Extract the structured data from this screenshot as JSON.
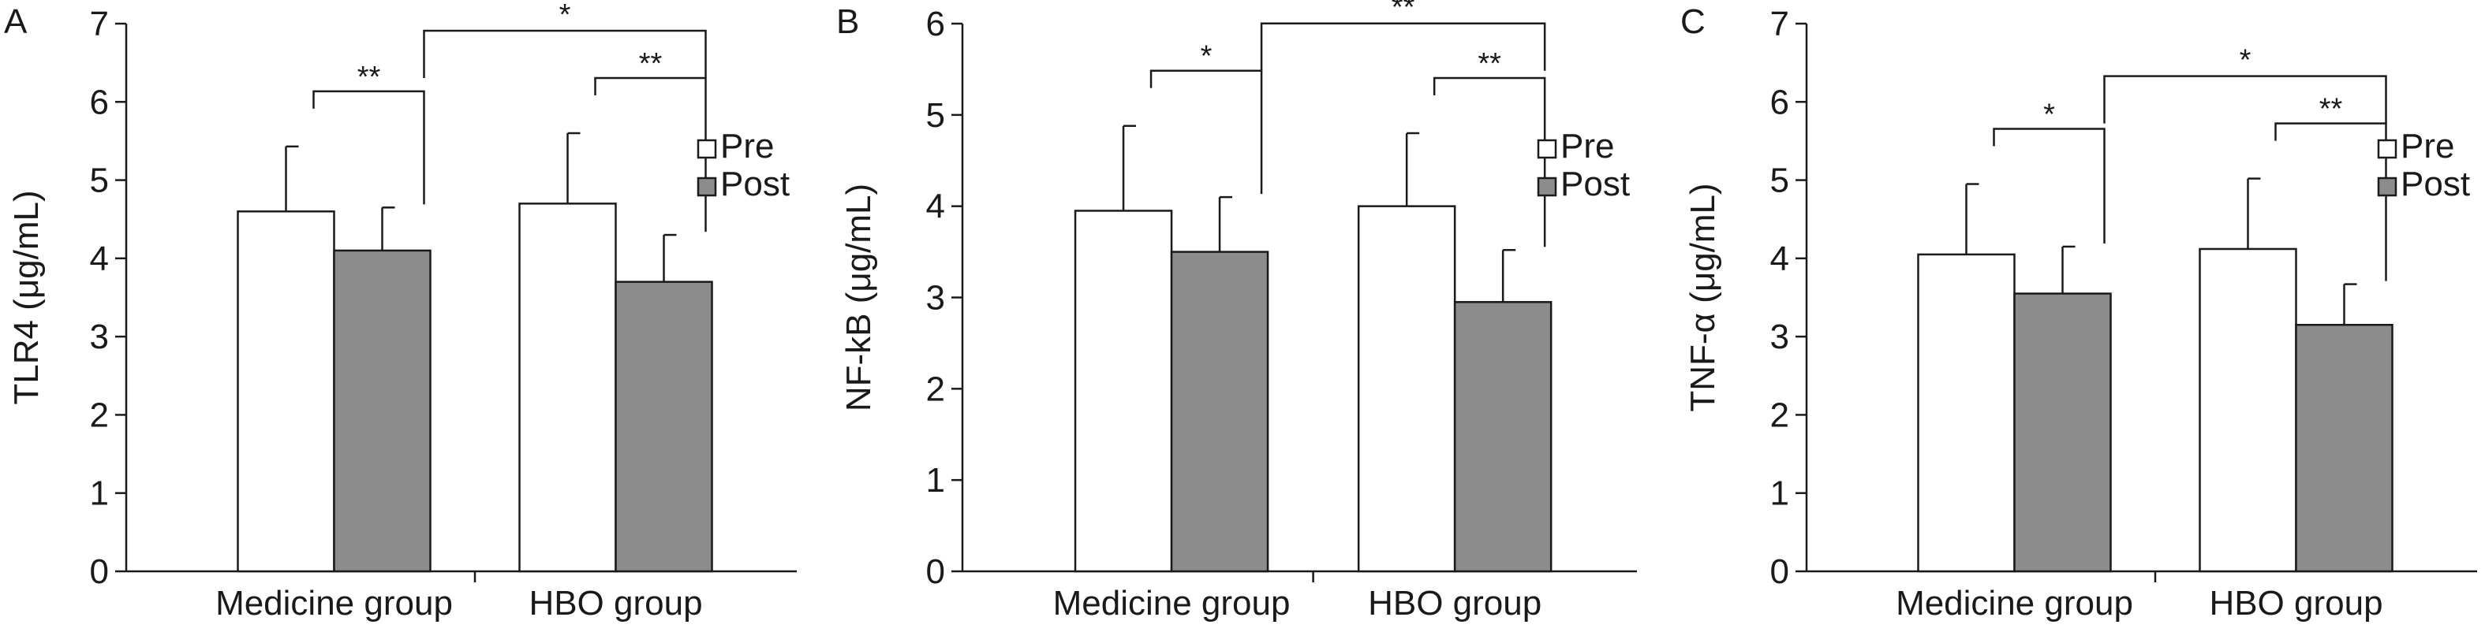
{
  "chart_data": [
    {
      "type": "bar",
      "panel_label": "A",
      "ylabel": "TLR4 (μg/mL)",
      "ylim": [
        0,
        7
      ],
      "yticks": [
        0,
        1,
        2,
        3,
        4,
        5,
        6,
        7
      ],
      "categories": [
        "Medicine group",
        "HBO group"
      ],
      "series": [
        {
          "name": "Pre",
          "values": [
            4.6,
            4.7
          ],
          "errors": [
            0.83,
            0.9
          ]
        },
        {
          "name": "Post",
          "values": [
            4.1,
            3.7
          ],
          "errors": [
            0.55,
            0.6
          ]
        }
      ],
      "legend_position": "right",
      "significance": [
        {
          "type": "within",
          "category": 0,
          "label": "**"
        },
        {
          "type": "within",
          "category": 1,
          "label": "**"
        },
        {
          "type": "between",
          "label": "*"
        }
      ]
    },
    {
      "type": "bar",
      "panel_label": "B",
      "ylabel": "NF-kB (μg/mL)",
      "ylim": [
        0,
        6
      ],
      "yticks": [
        0,
        1,
        2,
        3,
        4,
        5,
        6
      ],
      "categories": [
        "Medicine group",
        "HBO group"
      ],
      "series": [
        {
          "name": "Pre",
          "values": [
            3.95,
            4.0
          ],
          "errors": [
            0.93,
            0.8
          ]
        },
        {
          "name": "Post",
          "values": [
            3.5,
            2.95
          ],
          "errors": [
            0.6,
            0.57
          ]
        }
      ],
      "legend_position": "right",
      "significance": [
        {
          "type": "within",
          "category": 0,
          "label": "*"
        },
        {
          "type": "within",
          "category": 1,
          "label": "**"
        },
        {
          "type": "between",
          "label": "**"
        }
      ]
    },
    {
      "type": "bar",
      "panel_label": "C",
      "ylabel": "TNF-α (μg/mL)",
      "ylim": [
        0,
        7
      ],
      "yticks": [
        0,
        1,
        2,
        3,
        4,
        5,
        6,
        7
      ],
      "categories": [
        "Medicine group",
        "HBO group"
      ],
      "series": [
        {
          "name": "Pre",
          "values": [
            4.05,
            4.12
          ],
          "errors": [
            0.9,
            0.9
          ]
        },
        {
          "name": "Post",
          "values": [
            3.55,
            3.15
          ],
          "errors": [
            0.6,
            0.52
          ]
        }
      ],
      "legend_position": "right",
      "significance": [
        {
          "type": "within",
          "category": 0,
          "label": "*"
        },
        {
          "type": "within",
          "category": 1,
          "label": "**"
        },
        {
          "type": "between",
          "label": "*"
        }
      ]
    }
  ],
  "colors": {
    "pre_fill": "#ffffff",
    "post_fill": "#8c8c8c",
    "stroke": "#1a1a1a"
  }
}
